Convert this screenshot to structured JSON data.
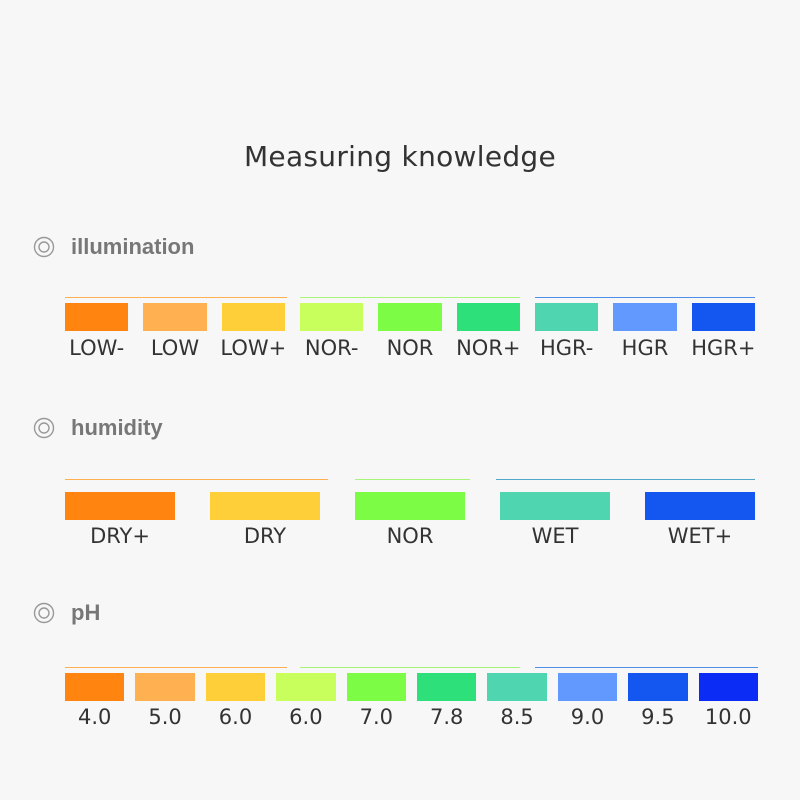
{
  "title": "Measuring knowledge",
  "icon": "target-circle-icon",
  "sections": [
    {
      "title": "illumination",
      "items": [
        {
          "label": "LOW-",
          "color": "#ff8410"
        },
        {
          "label": "LOW",
          "color": "#ffb050"
        },
        {
          "label": "LOW+",
          "color": "#ffcf3a"
        },
        {
          "label": "NOR-",
          "color": "#c8ff5c"
        },
        {
          "label": "NOR",
          "color": "#7cfc45"
        },
        {
          "label": "NOR+",
          "color": "#2ee07a"
        },
        {
          "label": "HGR-",
          "color": "#4fd6b0"
        },
        {
          "label": "HGR",
          "color": "#6199ff"
        },
        {
          "label": "HGR+",
          "color": "#1456f0"
        }
      ]
    },
    {
      "title": "humidity",
      "items": [
        {
          "label": "DRY+",
          "color": "#ff8410"
        },
        {
          "label": "DRY",
          "color": "#ffcf3a"
        },
        {
          "label": "NOR",
          "color": "#7cfc45"
        },
        {
          "label": "WET",
          "color": "#4fd6b0"
        },
        {
          "label": "WET+",
          "color": "#1456f0"
        }
      ]
    },
    {
      "title": "pH",
      "items": [
        {
          "label": "4.0",
          "color": "#ff8410"
        },
        {
          "label": "5.0",
          "color": "#ffb050"
        },
        {
          "label": "6.0",
          "color": "#ffcf3a"
        },
        {
          "label": "6.0",
          "color": "#c8ff5c"
        },
        {
          "label": "7.0",
          "color": "#7cfc45"
        },
        {
          "label": "7.8",
          "color": "#2ee07a"
        },
        {
          "label": "8.5",
          "color": "#4fd6b0"
        },
        {
          "label": "9.0",
          "color": "#6199ff"
        },
        {
          "label": "9.5",
          "color": "#1456f0"
        },
        {
          "label": "10.0",
          "color": "#0a2cf5"
        }
      ]
    }
  ]
}
